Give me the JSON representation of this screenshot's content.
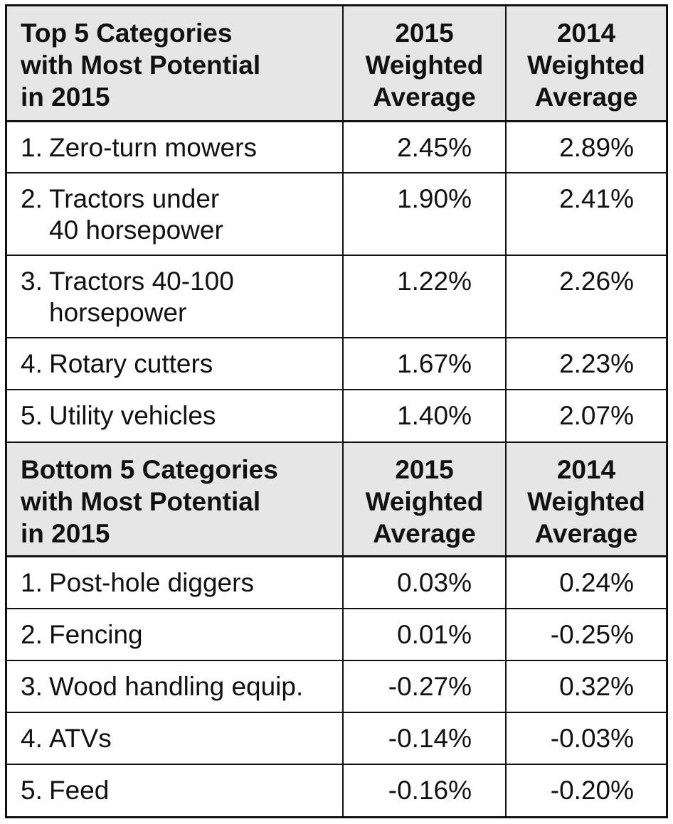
{
  "chart_data": {
    "type": "table",
    "sections": [
      {
        "header": {
          "category_lines": [
            "Top 5 Categories",
            "with Most Potential",
            "in 2015"
          ],
          "col2015_lines": [
            "2015",
            "Weighted",
            "Average"
          ],
          "col2014_lines": [
            "2014",
            "Weighted",
            "Average"
          ]
        },
        "rows": [
          {
            "num": "1.",
            "label_lines": [
              "Zero-turn mowers"
            ],
            "v2015": "2.45%",
            "v2014": "2.89%"
          },
          {
            "num": "2.",
            "label_lines": [
              "Tractors under",
              "40 horsepower"
            ],
            "v2015": "1.90%",
            "v2014": "2.41%"
          },
          {
            "num": "3.",
            "label_lines": [
              "Tractors 40-100",
              "horsepower"
            ],
            "v2015": "1.22%",
            "v2014": "2.26%"
          },
          {
            "num": "4.",
            "label_lines": [
              "Rotary cutters"
            ],
            "v2015": "1.67%",
            "v2014": "2.23%"
          },
          {
            "num": "5.",
            "label_lines": [
              "Utility vehicles"
            ],
            "v2015": "1.40%",
            "v2014": "2.07%"
          }
        ]
      },
      {
        "header": {
          "category_lines": [
            "Bottom 5 Categories",
            "with Most Potential",
            "in 2015"
          ],
          "col2015_lines": [
            "2015",
            "Weighted",
            "Average"
          ],
          "col2014_lines": [
            "2014",
            "Weighted",
            "Average"
          ]
        },
        "rows": [
          {
            "num": "1.",
            "label_lines": [
              "Post-hole diggers"
            ],
            "v2015": "0.03%",
            "v2014": "0.24%"
          },
          {
            "num": "2.",
            "label_lines": [
              "Fencing"
            ],
            "v2015": "0.01%",
            "v2014": "-0.25%"
          },
          {
            "num": "3.",
            "label_lines": [
              "Wood handling equip."
            ],
            "v2015": "-0.27%",
            "v2014": "0.32%"
          },
          {
            "num": "4.",
            "label_lines": [
              "ATVs"
            ],
            "v2015": "-0.14%",
            "v2014": "-0.03%"
          },
          {
            "num": "5.",
            "label_lines": [
              "Feed"
            ],
            "v2015": "-0.16%",
            "v2014": "-0.20%"
          }
        ]
      }
    ]
  }
}
